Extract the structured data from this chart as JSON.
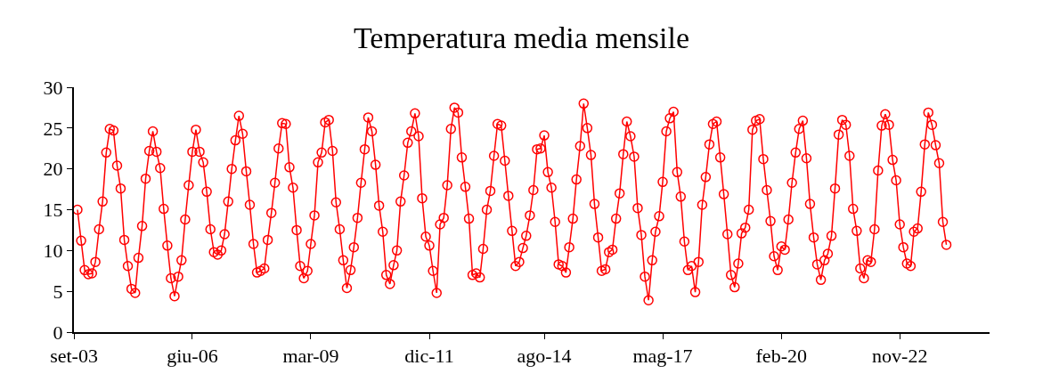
{
  "chart_data": {
    "type": "line",
    "title": "Temperatura media mensile",
    "x": [
      "2003-10",
      "2003-11",
      "2003-12",
      "2004-01",
      "2004-02",
      "2004-03",
      "2004-04",
      "2004-05",
      "2004-06",
      "2004-07",
      "2004-08",
      "2004-09",
      "2004-10",
      "2004-11",
      "2004-12",
      "2005-01",
      "2005-02",
      "2005-03",
      "2005-04",
      "2005-05",
      "2005-06",
      "2005-07",
      "2005-08",
      "2005-09",
      "2005-10",
      "2005-11",
      "2005-12",
      "2006-01",
      "2006-02",
      "2006-03",
      "2006-04",
      "2006-05",
      "2006-06",
      "2006-07",
      "2006-08",
      "2006-09",
      "2006-10",
      "2006-11",
      "2006-12",
      "2007-01",
      "2007-02",
      "2007-03",
      "2007-04",
      "2007-05",
      "2007-06",
      "2007-07",
      "2007-08",
      "2007-09",
      "2007-10",
      "2007-11",
      "2007-12",
      "2008-01",
      "2008-02",
      "2008-03",
      "2008-04",
      "2008-05",
      "2008-06",
      "2008-07",
      "2008-08",
      "2008-09",
      "2008-10",
      "2008-11",
      "2008-12",
      "2009-01",
      "2009-02",
      "2009-03",
      "2009-04",
      "2009-05",
      "2009-06",
      "2009-07",
      "2009-08",
      "2009-09",
      "2009-10",
      "2009-11",
      "2009-12",
      "2010-01",
      "2010-02",
      "2010-03",
      "2010-04",
      "2010-05",
      "2010-06",
      "2010-07",
      "2010-08",
      "2010-09",
      "2010-10",
      "2010-11",
      "2010-12",
      "2011-01",
      "2011-02",
      "2011-03",
      "2011-04",
      "2011-05",
      "2011-06",
      "2011-07",
      "2011-08",
      "2011-09",
      "2011-10",
      "2011-11",
      "2011-12",
      "2012-01",
      "2012-02",
      "2012-03",
      "2012-04",
      "2012-05",
      "2012-06",
      "2012-07",
      "2012-08",
      "2012-09",
      "2012-10",
      "2012-11",
      "2012-12",
      "2013-01",
      "2013-02",
      "2013-03",
      "2013-04",
      "2013-05",
      "2013-06",
      "2013-07",
      "2013-08",
      "2013-09",
      "2013-10",
      "2013-11",
      "2013-12",
      "2014-01",
      "2014-02",
      "2014-03",
      "2014-04",
      "2014-05",
      "2014-06",
      "2014-07",
      "2014-08",
      "2014-09",
      "2014-10",
      "2014-11",
      "2014-12",
      "2015-01",
      "2015-02",
      "2015-03",
      "2015-04",
      "2015-05",
      "2015-06",
      "2015-07",
      "2015-08",
      "2015-09",
      "2015-10",
      "2015-11",
      "2015-12",
      "2016-01",
      "2016-02",
      "2016-03",
      "2016-04",
      "2016-05",
      "2016-06",
      "2016-07",
      "2016-08",
      "2016-09",
      "2016-10",
      "2016-11",
      "2016-12",
      "2017-01",
      "2017-02",
      "2017-03",
      "2017-04",
      "2017-05",
      "2017-06",
      "2017-07",
      "2017-08",
      "2017-09",
      "2017-10",
      "2017-11",
      "2017-12",
      "2018-01",
      "2018-02",
      "2018-03",
      "2018-04",
      "2018-05",
      "2018-06",
      "2018-07",
      "2018-08",
      "2018-09",
      "2018-10",
      "2018-11",
      "2018-12",
      "2019-01",
      "2019-02",
      "2019-03",
      "2019-04",
      "2019-05",
      "2019-06",
      "2019-07",
      "2019-08",
      "2019-09",
      "2019-10",
      "2019-11",
      "2019-12",
      "2020-01",
      "2020-02",
      "2020-03",
      "2020-04",
      "2020-05",
      "2020-06",
      "2020-07",
      "2020-08",
      "2020-09",
      "2020-10",
      "2020-11",
      "2020-12",
      "2021-01",
      "2021-02",
      "2021-03",
      "2021-04",
      "2021-05",
      "2021-06",
      "2021-07",
      "2021-08",
      "2021-09",
      "2021-10",
      "2021-11",
      "2021-12",
      "2022-01",
      "2022-02",
      "2022-03",
      "2022-04",
      "2022-05",
      "2022-06",
      "2022-07",
      "2022-08",
      "2022-09",
      "2022-10",
      "2022-11",
      "2022-12",
      "2023-01",
      "2023-02",
      "2023-03",
      "2023-04",
      "2023-05",
      "2023-06",
      "2023-07",
      "2023-08",
      "2023-09",
      "2023-10",
      "2023-11",
      "2023-12"
    ],
    "series": [
      {
        "color": "#ff0000",
        "values": [
          15,
          11.2,
          7.6,
          7.1,
          7.2,
          8.6,
          12.6,
          16,
          22,
          24.9,
          24.7,
          20.4,
          17.6,
          11.3,
          8.1,
          5.3,
          4.8,
          9.1,
          13,
          18.8,
          22.2,
          24.6,
          22.1,
          20.1,
          15.1,
          10.6,
          6.6,
          4.4,
          6.8,
          8.8,
          13.8,
          18,
          22.1,
          24.8,
          22.1,
          20.8,
          17.2,
          12.6,
          9.8,
          9.5,
          10,
          12,
          16,
          20,
          23.5,
          26.5,
          24.3,
          19.7,
          15.6,
          10.8,
          7.3,
          7.5,
          7.8,
          11.3,
          14.6,
          18.3,
          22.5,
          25.6,
          25.5,
          20.2,
          17.7,
          12.5,
          8.1,
          6.6,
          7.5,
          10.8,
          14.3,
          20.8,
          22,
          25.7,
          26,
          22.2,
          15.9,
          12.6,
          8.8,
          5.4,
          7.6,
          10.4,
          14,
          18.3,
          22.4,
          26.3,
          24.6,
          20.5,
          15.5,
          12.3,
          7,
          5.9,
          8.2,
          10,
          16,
          19.2,
          23.2,
          24.6,
          26.8,
          24,
          16.4,
          11.7,
          10.6,
          7.5,
          4.8,
          13.2,
          14,
          18,
          24.9,
          27.5,
          26.9,
          21.4,
          17.8,
          13.9,
          7,
          7.2,
          6.7,
          10.2,
          15,
          17.3,
          21.6,
          25.5,
          25.3,
          21,
          16.7,
          12.4,
          8.1,
          8.6,
          10.3,
          11.8,
          14.3,
          17.4,
          22.4,
          22.5,
          24.1,
          19.6,
          17.7,
          13.5,
          8.3,
          8.1,
          7.3,
          10.4,
          13.9,
          18.7,
          22.8,
          28,
          25,
          21.7,
          15.7,
          11.6,
          7.5,
          7.7,
          9.8,
          10.1,
          13.9,
          17,
          21.8,
          25.8,
          24,
          21.5,
          15.2,
          11.9,
          6.8,
          3.9,
          8.8,
          12.3,
          14.2,
          18.4,
          24.6,
          26.2,
          27,
          19.6,
          16.6,
          11.1,
          7.6,
          8.1,
          4.9,
          8.6,
          15.6,
          19,
          23,
          25.5,
          25.8,
          21.4,
          16.9,
          12,
          7,
          5.5,
          8.4,
          12.1,
          12.8,
          15,
          24.8,
          25.9,
          26.1,
          21.2,
          17.4,
          13.6,
          9.3,
          7.6,
          10.5,
          10.1,
          13.8,
          18.3,
          22,
          24.9,
          25.9,
          21.3,
          15.7,
          11.6,
          8.3,
          6.4,
          8.8,
          9.6,
          11.8,
          17.6,
          24.2,
          26,
          25.4,
          21.6,
          15.1,
          12.4,
          7.8,
          6.6,
          8.8,
          8.6,
          12.6,
          19.8,
          25.3,
          26.7,
          25.4,
          21.1,
          18.6,
          13.2,
          10.4,
          8.4,
          8.1,
          12.3,
          12.7,
          17.2,
          23,
          26.9,
          25.4,
          22.9,
          20.7,
          13.5,
          10.7
        ]
      }
    ],
    "xlim": [
      "2003-09-01",
      "2024-12-01"
    ],
    "xticks": [
      {
        "value": "2003-09-01",
        "label": "set-03"
      },
      {
        "value": "2006-06-01",
        "label": "giu-06"
      },
      {
        "value": "2009-03-01",
        "label": "mar-09"
      },
      {
        "value": "2011-12-01",
        "label": "dic-11"
      },
      {
        "value": "2014-08-01",
        "label": "ago-14"
      },
      {
        "value": "2017-05-01",
        "label": "mag-17"
      },
      {
        "value": "2020-02-01",
        "label": "feb-20"
      },
      {
        "value": "2022-11-01",
        "label": "nov-22"
      }
    ],
    "ylim": [
      0,
      30
    ],
    "yticks": [
      0,
      5,
      10,
      15,
      20,
      25,
      30
    ],
    "grid": false,
    "marker": "circle",
    "line_style": "solid"
  }
}
